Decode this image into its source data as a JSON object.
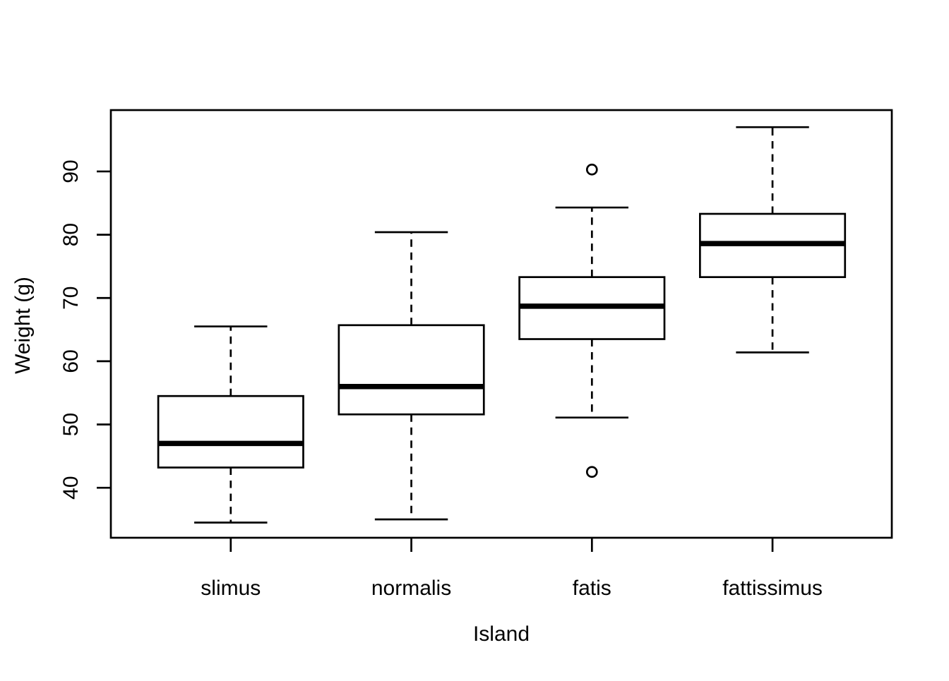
{
  "figure": {
    "background": "#ffffff",
    "foreground": "#000000"
  },
  "chart_data": {
    "type": "boxplot",
    "title": "",
    "xlabel": "Island",
    "ylabel": "Weight (g)",
    "categories": [
      "slimus",
      "normalis",
      "fatis",
      "fattissimus"
    ],
    "y_ticks": [
      40,
      50,
      60,
      70,
      80,
      90
    ],
    "ylim": [
      32.1,
      99.7
    ],
    "grid": false,
    "legend": null,
    "boxes": [
      {
        "category": "slimus",
        "whisker_low": 34.5,
        "q1": 43.2,
        "median": 47.0,
        "q3": 54.5,
        "whisker_high": 65.5,
        "outliers": []
      },
      {
        "category": "normalis",
        "whisker_low": 35.0,
        "q1": 51.6,
        "median": 56.0,
        "q3": 65.7,
        "whisker_high": 80.4,
        "outliers": []
      },
      {
        "category": "fatis",
        "whisker_low": 51.1,
        "q1": 63.5,
        "median": 68.7,
        "q3": 73.3,
        "whisker_high": 84.3,
        "outliers": [
          90.3,
          42.5
        ]
      },
      {
        "category": "fattissimus",
        "whisker_low": 61.4,
        "q1": 73.3,
        "median": 78.6,
        "q3": 83.3,
        "whisker_high": 97.0,
        "outliers": []
      }
    ]
  }
}
